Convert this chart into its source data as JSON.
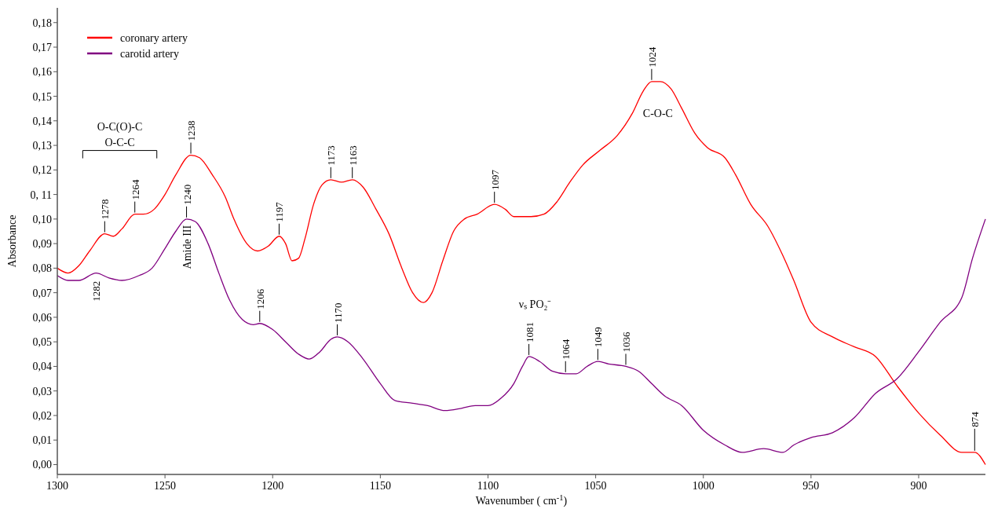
{
  "chart_data": {
    "type": "line",
    "xlabel": "Wavenumber ( cm$^{-1}$)",
    "ylabel": "Absorbance",
    "xlim": [
      1300,
      869
    ],
    "xticks": [
      1300,
      1250,
      1200,
      1150,
      1100,
      1050,
      1000,
      950,
      900
    ],
    "ylim": [
      -0.004,
      0.186
    ],
    "yticks": [
      {
        "value": 0,
        "label": "0,00"
      },
      {
        "value": 0.01,
        "label": "0,01"
      },
      {
        "value": 0.02,
        "label": "0,02"
      },
      {
        "value": 0.03,
        "label": "0,03"
      },
      {
        "value": 0.04,
        "label": "0,04"
      },
      {
        "value": 0.05,
        "label": "0,05"
      },
      {
        "value": 0.06,
        "label": "0,06"
      },
      {
        "value": 0.07,
        "label": "0,07"
      },
      {
        "value": 0.08,
        "label": "0,08"
      },
      {
        "value": 0.09,
        "label": "0,09"
      },
      {
        "value": 0.1,
        "label": "0,10"
      },
      {
        "value": 0.11,
        "label": "0, 11"
      },
      {
        "value": 0.12,
        "label": "0,12"
      },
      {
        "value": 0.13,
        "label": "0,13"
      },
      {
        "value": 0.14,
        "label": "0,14"
      },
      {
        "value": 0.15,
        "label": "0,15"
      },
      {
        "value": 0.16,
        "label": "0,16"
      },
      {
        "value": 0.17,
        "label": "0,17"
      },
      {
        "value": 0.18,
        "label": "0,18"
      }
    ],
    "grid": false,
    "legend": "top left",
    "marker": "none",
    "line_style": "solid",
    "series": [
      {
        "name": "coronary artery",
        "color": "#ff0000",
        "x": [
          1300,
          1295,
          1290,
          1285,
          1278,
          1274,
          1270,
          1264,
          1260,
          1255,
          1250,
          1245,
          1238,
          1234,
          1228,
          1222,
          1218,
          1212,
          1207,
          1202,
          1197,
          1194,
          1191,
          1188,
          1185,
          1181,
          1177,
          1173,
          1168,
          1163,
          1158,
          1152,
          1146,
          1140,
          1135,
          1130,
          1126,
          1121,
          1116,
          1111,
          1105,
          1097,
          1092,
          1088,
          1080,
          1074,
          1068,
          1062,
          1056,
          1048,
          1040,
          1033,
          1028,
          1024,
          1020,
          1015,
          1010,
          1004,
          998,
          990,
          985,
          978,
          970,
          963,
          958,
          950,
          940,
          930,
          920,
          910,
          900,
          890,
          880,
          874,
          869
        ],
        "values": [
          0.08,
          0.078,
          0.081,
          0.087,
          0.094,
          0.093,
          0.096,
          0.102,
          0.102,
          0.104,
          0.11,
          0.118,
          0.126,
          0.125,
          0.118,
          0.109,
          0.1,
          0.09,
          0.087,
          0.089,
          0.093,
          0.09,
          0.083,
          0.084,
          0.092,
          0.106,
          0.114,
          0.116,
          0.115,
          0.116,
          0.113,
          0.104,
          0.094,
          0.08,
          0.07,
          0.066,
          0.07,
          0.083,
          0.095,
          0.1,
          0.102,
          0.106,
          0.104,
          0.101,
          0.101,
          0.102,
          0.107,
          0.115,
          0.122,
          0.128,
          0.134,
          0.143,
          0.152,
          0.156,
          0.156,
          0.153,
          0.145,
          0.135,
          0.129,
          0.125,
          0.118,
          0.106,
          0.097,
          0.085,
          0.075,
          0.058,
          0.052,
          0.048,
          0.044,
          0.032,
          0.021,
          0.012,
          0.005,
          0.005,
          0.0
        ]
      },
      {
        "name": "carotid artery",
        "color": "#800080",
        "x": [
          1300,
          1295,
          1290,
          1282,
          1276,
          1270,
          1262,
          1256,
          1250,
          1245,
          1240,
          1236,
          1230,
          1225,
          1220,
          1214,
          1209,
          1206,
          1200,
          1194,
          1188,
          1183,
          1178,
          1173,
          1170,
          1165,
          1158,
          1150,
          1143,
          1135,
          1128,
          1120,
          1112,
          1106,
          1100,
          1094,
          1088,
          1084,
          1081,
          1076,
          1070,
          1064,
          1059,
          1054,
          1049,
          1044,
          1036,
          1030,
          1024,
          1018,
          1010,
          1000,
          990,
          982,
          972,
          963,
          958,
          950,
          940,
          930,
          920,
          910,
          900,
          890,
          880,
          875,
          869
        ],
        "values": [
          0.077,
          0.075,
          0.075,
          0.078,
          0.076,
          0.075,
          0.077,
          0.08,
          0.088,
          0.095,
          0.1,
          0.099,
          0.09,
          0.078,
          0.067,
          0.059,
          0.057,
          0.0575,
          0.055,
          0.05,
          0.045,
          0.043,
          0.046,
          0.051,
          0.052,
          0.05,
          0.043,
          0.033,
          0.026,
          0.025,
          0.024,
          0.022,
          0.023,
          0.024,
          0.024,
          0.027,
          0.033,
          0.04,
          0.044,
          0.042,
          0.038,
          0.037,
          0.037,
          0.04,
          0.042,
          0.041,
          0.04,
          0.038,
          0.033,
          0.028,
          0.024,
          0.014,
          0.008,
          0.005,
          0.0065,
          0.005,
          0.008,
          0.011,
          0.013,
          0.019,
          0.029,
          0.035,
          0.046,
          0.058,
          0.068,
          0.084,
          0.1
        ]
      }
    ],
    "annotations": [
      "O-C(O)-C",
      "O-C-C",
      {
        "text": "Amide III",
        "x": 1240,
        "y": 0.1
      },
      {
        "text": "C-O-C",
        "x": 1024,
        "y": 0.156
      },
      "νₛ PO₂⁻",
      {
        "text": "1278",
        "x": 1278,
        "y": 0.094
      },
      {
        "text": "1264",
        "x": 1264,
        "y": 0.102
      },
      {
        "text": "1238",
        "x": 1238,
        "y": 0.126
      },
      {
        "text": "1197",
        "x": 1197,
        "y": 0.093
      },
      {
        "text": "1173",
        "x": 1173,
        "y": 0.116
      },
      {
        "text": "1163",
        "x": 1163,
        "y": 0.116
      },
      {
        "text": "1097",
        "x": 1097,
        "y": 0.106
      },
      {
        "text": "1024",
        "x": 1024,
        "y": 0.156
      },
      {
        "text": "874",
        "x": 874,
        "y": 0.005
      },
      {
        "text": "1282",
        "x": 1282,
        "y": 0.078
      },
      {
        "text": "1240",
        "x": 1240,
        "y": 0.1
      },
      {
        "text": "1206",
        "x": 1206,
        "y": 0.0575
      },
      {
        "text": "1170",
        "x": 1170,
        "y": 0.052
      },
      {
        "text": "1081",
        "x": 1081,
        "y": 0.044
      },
      {
        "text": "1064",
        "x": 1064,
        "y": 0.037
      },
      {
        "text": "1049",
        "x": 1049,
        "y": 0.042
      },
      {
        "text": "1036",
        "x": 1036,
        "y": 0.04
      }
    ]
  }
}
